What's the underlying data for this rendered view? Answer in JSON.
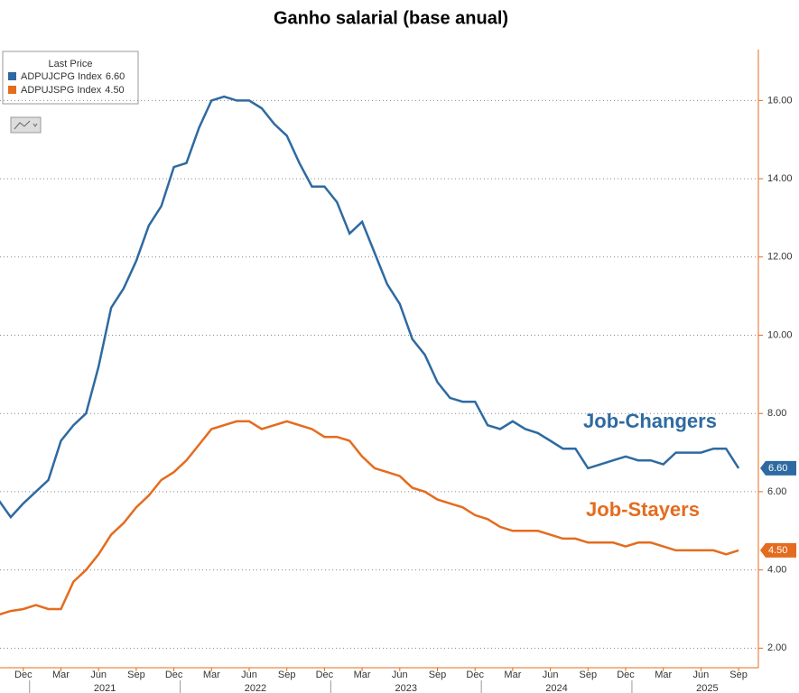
{
  "chart_data": {
    "type": "line",
    "title": "Ganho salarial (base anual)",
    "legend_title": "Last Price",
    "categories": [
      null,
      null,
      "Dec",
      null,
      null,
      "Mar",
      null,
      null,
      "Jun",
      null,
      null,
      "Sep",
      null,
      null,
      "Dec",
      null,
      null,
      "Mar",
      null,
      null,
      "Jun",
      null,
      null,
      "Sep",
      null,
      null,
      "Dec",
      null,
      null,
      "Mar",
      null,
      null,
      "Jun",
      null,
      null,
      "Sep",
      null,
      null,
      "Dec",
      null,
      null,
      "Mar",
      null,
      null,
      "Jun",
      null,
      null,
      "Sep",
      null,
      null,
      "Dec",
      null,
      null,
      "Mar",
      null,
      null,
      "Jun",
      null,
      null,
      "Sep"
    ],
    "years": [
      "2021",
      "2022",
      "2023",
      "2024",
      "2025"
    ],
    "series": [
      {
        "name": "ADPUJCPG Index",
        "last_value_label": "6.60",
        "color": "#2e6aa1",
        "values": [
          5.8,
          5.35,
          5.7,
          6.0,
          6.3,
          7.3,
          7.7,
          8.0,
          9.2,
          10.7,
          11.2,
          11.9,
          12.8,
          13.3,
          14.3,
          14.4,
          15.3,
          16.0,
          16.1,
          16.0,
          16.0,
          15.8,
          15.4,
          15.1,
          14.4,
          13.8,
          13.8,
          13.4,
          12.6,
          12.9,
          12.1,
          11.3,
          10.8,
          9.9,
          9.5,
          8.8,
          8.4,
          8.3,
          8.3,
          7.7,
          7.6,
          7.8,
          7.6,
          7.5,
          7.3,
          7.1,
          7.1,
          6.6,
          6.7,
          6.8,
          6.9,
          6.8,
          6.8,
          6.7,
          7.0,
          7.0,
          7.0,
          7.1,
          7.1,
          6.6
        ]
      },
      {
        "name": "ADPUJSPG Index",
        "last_value_label": "4.50",
        "color": "#e46c1e",
        "values": [
          2.85,
          2.95,
          3.0,
          3.1,
          3.0,
          3.0,
          3.7,
          4.0,
          4.4,
          4.9,
          5.2,
          5.6,
          5.9,
          6.3,
          6.5,
          6.8,
          7.2,
          7.6,
          7.7,
          7.8,
          7.8,
          7.6,
          7.7,
          7.8,
          7.7,
          7.6,
          7.4,
          7.4,
          7.3,
          6.9,
          6.6,
          6.5,
          6.4,
          6.1,
          6.0,
          5.8,
          5.7,
          5.6,
          5.4,
          5.3,
          5.1,
          5.0,
          5.0,
          5.0,
          4.9,
          4.8,
          4.8,
          4.7,
          4.7,
          4.7,
          4.6,
          4.7,
          4.7,
          4.6,
          4.5,
          4.5,
          4.5,
          4.5,
          4.4,
          4.5
        ]
      }
    ],
    "annotations": [
      {
        "text": "Job-Changers",
        "series": 0
      },
      {
        "text": "Job-Stayers",
        "series": 1
      }
    ],
    "ylim": [
      1.5,
      17.3
    ],
    "yticks": [
      {
        "value": 2,
        "label": "2.00"
      },
      {
        "value": 4,
        "label": "4.00"
      },
      {
        "value": 6,
        "label": "6.00"
      },
      {
        "value": 8,
        "label": "8.00"
      },
      {
        "value": 10,
        "label": "10.00"
      },
      {
        "value": 12,
        "label": "12.00"
      },
      {
        "value": 14,
        "label": "14.00"
      },
      {
        "value": 16,
        "label": "16.00"
      }
    ],
    "grid": true
  }
}
